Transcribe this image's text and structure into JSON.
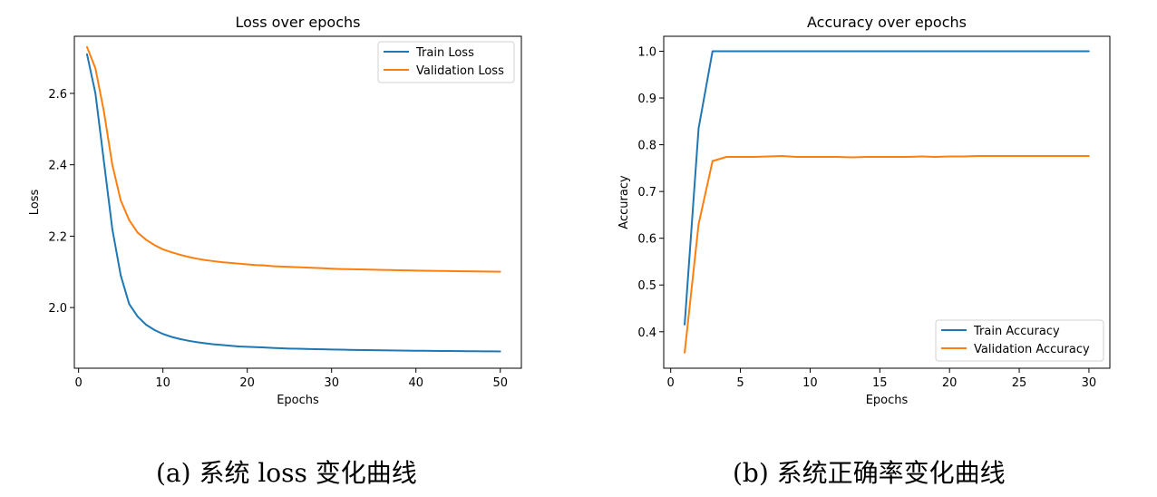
{
  "chart_data": [
    {
      "type": "line",
      "title": "Loss over epochs",
      "xlabel": "Epochs",
      "ylabel": "Loss",
      "xlim": [
        -0.5,
        52.5
      ],
      "ylim": [
        1.83,
        2.76
      ],
      "xticks": [
        0,
        10,
        20,
        30,
        40,
        50
      ],
      "yticks": [
        2.0,
        2.2,
        2.4,
        2.6
      ],
      "ytick_format": 1,
      "grid": false,
      "legend_position": "top-right",
      "x": [
        1,
        2,
        3,
        4,
        5,
        6,
        7,
        8,
        9,
        10,
        11,
        12,
        13,
        14,
        15,
        16,
        17,
        18,
        19,
        20,
        21,
        22,
        23,
        24,
        25,
        26,
        27,
        28,
        29,
        30,
        31,
        32,
        33,
        34,
        35,
        36,
        37,
        38,
        39,
        40,
        41,
        42,
        43,
        44,
        45,
        46,
        47,
        48,
        49,
        50
      ],
      "series": [
        {
          "name": "Train Loss",
          "color": "#1f77b4",
          "values": [
            2.71,
            2.6,
            2.41,
            2.22,
            2.09,
            2.01,
            1.975,
            1.952,
            1.937,
            1.926,
            1.918,
            1.912,
            1.907,
            1.903,
            1.9,
            1.897,
            1.895,
            1.893,
            1.891,
            1.89,
            1.889,
            1.888,
            1.887,
            1.886,
            1.885,
            1.8845,
            1.884,
            1.8835,
            1.883,
            1.8825,
            1.882,
            1.8815,
            1.881,
            1.8807,
            1.8804,
            1.8801,
            1.8798,
            1.8795,
            1.8792,
            1.879,
            1.8788,
            1.8786,
            1.8784,
            1.8782,
            1.878,
            1.8778,
            1.8776,
            1.8774,
            1.8772,
            1.877
          ]
        },
        {
          "name": "Validation Loss",
          "color": "#ff7f0e",
          "values": [
            2.73,
            2.67,
            2.55,
            2.4,
            2.3,
            2.245,
            2.21,
            2.19,
            2.175,
            2.163,
            2.155,
            2.148,
            2.142,
            2.137,
            2.133,
            2.13,
            2.127,
            2.125,
            2.123,
            2.121,
            2.119,
            2.118,
            2.116,
            2.115,
            2.114,
            2.113,
            2.112,
            2.111,
            2.11,
            2.109,
            2.108,
            2.1075,
            2.107,
            2.1065,
            2.106,
            2.1055,
            2.105,
            2.1045,
            2.104,
            2.1035,
            2.103,
            2.1027,
            2.1024,
            2.1021,
            2.1018,
            2.1015,
            2.1012,
            2.1009,
            2.1006,
            2.1003
          ]
        }
      ]
    },
    {
      "type": "line",
      "title": "Accuracy over epochs",
      "xlabel": "Epochs",
      "ylabel": "Accuracy",
      "xlim": [
        -0.5,
        31.5
      ],
      "ylim": [
        0.322,
        1.032
      ],
      "xticks": [
        0,
        5,
        10,
        15,
        20,
        25,
        30
      ],
      "yticks": [
        0.4,
        0.5,
        0.6,
        0.7,
        0.8,
        0.9,
        1.0
      ],
      "ytick_format": 1,
      "grid": false,
      "legend_position": "lower-right",
      "x": [
        1,
        2,
        3,
        4,
        5,
        6,
        7,
        8,
        9,
        10,
        11,
        12,
        13,
        14,
        15,
        16,
        17,
        18,
        19,
        20,
        21,
        22,
        23,
        24,
        25,
        26,
        27,
        28,
        29,
        30
      ],
      "series": [
        {
          "name": "Train Accuracy",
          "color": "#1f77b4",
          "values": [
            0.415,
            0.835,
            1.0,
            1.0,
            1.0,
            1.0,
            1.0,
            1.0,
            1.0,
            1.0,
            1.0,
            1.0,
            1.0,
            1.0,
            1.0,
            1.0,
            1.0,
            1.0,
            1.0,
            1.0,
            1.0,
            1.0,
            1.0,
            1.0,
            1.0,
            1.0,
            1.0,
            1.0,
            1.0,
            1.0
          ]
        },
        {
          "name": "Validation Accuracy",
          "color": "#ff7f0e",
          "values": [
            0.355,
            0.63,
            0.765,
            0.774,
            0.774,
            0.774,
            0.775,
            0.776,
            0.774,
            0.774,
            0.774,
            0.774,
            0.773,
            0.774,
            0.774,
            0.774,
            0.774,
            0.775,
            0.774,
            0.775,
            0.775,
            0.776,
            0.776,
            0.776,
            0.776,
            0.776,
            0.776,
            0.776,
            0.776,
            0.776
          ]
        }
      ]
    }
  ],
  "captions": {
    "a": "(a)  系统 loss 变化曲线",
    "b": "(b)  系统正确率变化曲线"
  }
}
